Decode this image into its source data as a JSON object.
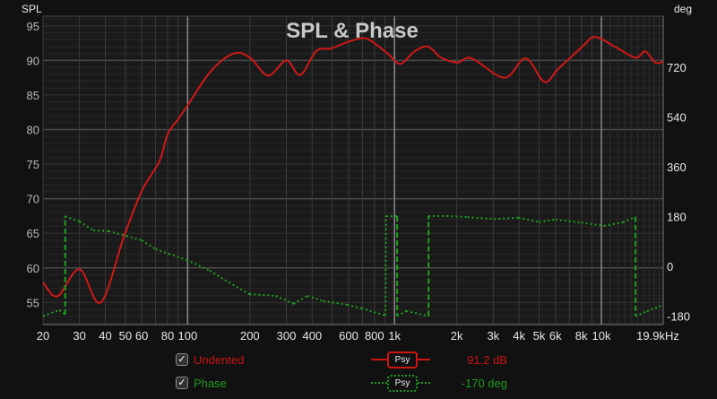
{
  "chart_data": {
    "type": "line",
    "title": "SPL & Phase",
    "ylabel": "SPL",
    "y2label": "deg",
    "x_scale": "log",
    "xlim": [
      20,
      19900
    ],
    "ylim": [
      51.8,
      96.4
    ],
    "y2lim": [
      -211,
      905
    ],
    "grid": true,
    "x_ticks": [
      {
        "v": 20,
        "l": "20"
      },
      {
        "v": 30,
        "l": "30"
      },
      {
        "v": 40,
        "l": "40"
      },
      {
        "v": 50,
        "l": "50"
      },
      {
        "v": 60,
        "l": "60"
      },
      {
        "v": 80,
        "l": "80"
      },
      {
        "v": 100,
        "l": "100"
      },
      {
        "v": 200,
        "l": "200"
      },
      {
        "v": 300,
        "l": "300"
      },
      {
        "v": 400,
        "l": "400"
      },
      {
        "v": 600,
        "l": "600"
      },
      {
        "v": 800,
        "l": "800"
      },
      {
        "v": 1000,
        "l": "1k"
      },
      {
        "v": 2000,
        "l": "2k"
      },
      {
        "v": 3000,
        "l": "3k"
      },
      {
        "v": 4000,
        "l": "4k"
      },
      {
        "v": 5000,
        "l": "5k"
      },
      {
        "v": 6000,
        "l": "6k"
      },
      {
        "v": 8000,
        "l": "8k"
      },
      {
        "v": 10000,
        "l": "10k"
      },
      {
        "v": 19900,
        "l": "19.9kHz"
      }
    ],
    "y_ticks": [
      {
        "v": 55,
        "l": "55"
      },
      {
        "v": 60,
        "l": "60"
      },
      {
        "v": 65,
        "l": "65"
      },
      {
        "v": 70,
        "l": "70"
      },
      {
        "v": 75,
        "l": "75"
      },
      {
        "v": 80,
        "l": "80"
      },
      {
        "v": 85,
        "l": "85"
      },
      {
        "v": 90,
        "l": "90"
      },
      {
        "v": 95,
        "l": "95"
      }
    ],
    "y2_ticks": [
      {
        "v": -180,
        "l": "-180"
      },
      {
        "v": 0,
        "l": "0"
      },
      {
        "v": 180,
        "l": "180"
      },
      {
        "v": 360,
        "l": "360"
      },
      {
        "v": 540,
        "l": "540"
      },
      {
        "v": 720,
        "l": "720"
      }
    ],
    "series": [
      {
        "name": "Undented",
        "axis": "left",
        "color": "#d01818",
        "style": "solid",
        "points": [
          [
            20,
            57.9
          ],
          [
            23.5,
            55.9
          ],
          [
            30,
            59.8
          ],
          [
            38,
            55
          ],
          [
            49.3,
            64.6
          ],
          [
            60,
            71.1
          ],
          [
            73,
            75.4
          ],
          [
            80,
            79.3
          ],
          [
            90,
            81.5
          ],
          [
            100,
            83.5
          ],
          [
            130,
            88.5
          ],
          [
            167,
            91
          ],
          [
            200,
            90.4
          ],
          [
            245,
            87.8
          ],
          [
            300,
            90
          ],
          [
            350,
            87.9
          ],
          [
            420,
            91.4
          ],
          [
            490,
            91.7
          ],
          [
            600,
            92.7
          ],
          [
            720,
            93.2
          ],
          [
            840,
            92
          ],
          [
            950,
            90.7
          ],
          [
            1070,
            89.5
          ],
          [
            1250,
            91.3
          ],
          [
            1450,
            92
          ],
          [
            1680,
            90.4
          ],
          [
            2020,
            89.7
          ],
          [
            2360,
            90.3
          ],
          [
            3400,
            87.5
          ],
          [
            4300,
            90.3
          ],
          [
            5300,
            86.9
          ],
          [
            6200,
            88.8
          ],
          [
            8100,
            92
          ],
          [
            9300,
            93.4
          ],
          [
            11600,
            92
          ],
          [
            14600,
            90.4
          ],
          [
            16300,
            91.3
          ],
          [
            18200,
            89.7
          ],
          [
            19900,
            89.8
          ]
        ]
      },
      {
        "name": "Phase",
        "axis": "right",
        "color": "#1fa01f",
        "style": "dotted",
        "points": [
          [
            20,
            -180
          ],
          [
            24,
            -159
          ],
          [
            25.6,
            -175
          ],
          [
            25.6,
            181
          ],
          [
            30,
            162
          ],
          [
            35,
            130
          ],
          [
            41.5,
            127
          ],
          [
            50.6,
            110
          ],
          [
            60,
            94
          ],
          [
            70,
            62
          ],
          [
            81,
            45
          ],
          [
            99,
            23
          ],
          [
            128,
            -16
          ],
          [
            158,
            -58
          ],
          [
            199,
            -101
          ],
          [
            267,
            -107
          ],
          [
            325,
            -136
          ],
          [
            380,
            -107
          ],
          [
            453,
            -126
          ],
          [
            590,
            -139
          ],
          [
            690,
            -152
          ],
          [
            905,
            -178
          ],
          [
            910,
            181
          ],
          [
            1030,
            181
          ],
          [
            1030,
            -180
          ],
          [
            1140,
            -162
          ],
          [
            1460,
            -180
          ],
          [
            1460,
            181
          ],
          [
            1790,
            182
          ],
          [
            2250,
            178
          ],
          [
            3030,
            171
          ],
          [
            3970,
            176
          ],
          [
            5000,
            160
          ],
          [
            6000,
            169
          ],
          [
            8000,
            158
          ],
          [
            10300,
            146
          ],
          [
            12700,
            159
          ],
          [
            14600,
            179
          ],
          [
            14600,
            -180
          ],
          [
            16600,
            -163
          ],
          [
            19000,
            -145
          ],
          [
            19900,
            -143
          ]
        ]
      }
    ]
  },
  "legend": [
    {
      "label": "Undented",
      "checked": true,
      "badge": "Psy",
      "value": "91.2 dB",
      "color": "#cc1414"
    },
    {
      "label": "Phase",
      "checked": true,
      "badge": "Psy",
      "value": "-170 deg",
      "color": "#1f9a1f"
    }
  ]
}
